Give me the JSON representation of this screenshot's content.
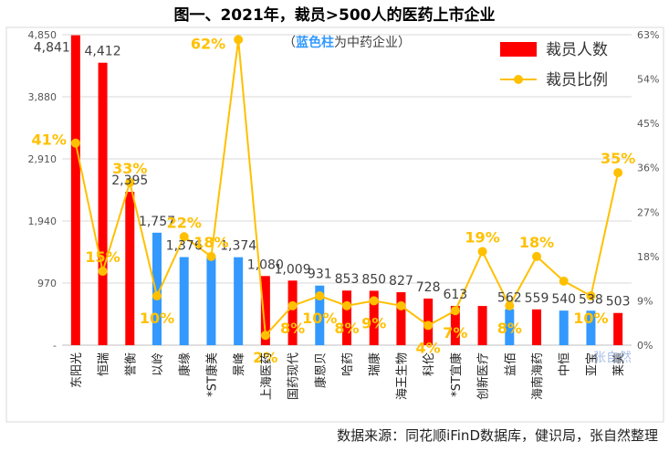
{
  "chart_data": {
    "type": "bar+line",
    "title": "图一、2021年，裁员>500人的医药上市企业",
    "annotation": "（蓝色柱为中药企业）",
    "annotation_highlight": "蓝色柱",
    "annotation_prefix": "（",
    "annotation_suffix": "为中药企业）",
    "source": "数据来源：同花顺iFinD数据库，健识局，张自然整理",
    "watermark": "张自然",
    "colors": {
      "red": "#ff0000",
      "blue": "#3399ff",
      "line": "#ffc000",
      "label_orange": "#ffc000"
    },
    "legend": {
      "bar": "裁员人数",
      "line": "裁员比例",
      "position": "top-right"
    },
    "left_axis": {
      "min": 0,
      "max": 4850,
      "ticks": [
        "-",
        "970",
        "1,940",
        "2,910",
        "3,880",
        "4,850"
      ]
    },
    "right_axis": {
      "min": 0,
      "max": 63,
      "ticks": [
        "0%",
        "9%",
        "18%",
        "27%",
        "36%",
        "45%",
        "54%",
        "63%"
      ]
    },
    "categories": [
      "东阳光",
      "恒瑞",
      "誉衡",
      "以岭",
      "康缘",
      "*ST康美",
      "景峰",
      "上海医药",
      "国药现代",
      "康恩贝",
      "哈药",
      "瑞康",
      "海王生物",
      "科伦",
      "*ST宜康",
      "创新医疗",
      "益佰",
      "海南海药",
      "中恒",
      "亚宝",
      "莱美"
    ],
    "bar_values": [
      4841,
      4412,
      2395,
      1757,
      1376,
      1376,
      1374,
      1080,
      1009,
      931,
      853,
      850,
      827,
      728,
      613,
      612,
      562,
      559,
      540,
      538,
      503
    ],
    "bar_labels": [
      "4,841",
      "4,412",
      "2,395",
      "1,757",
      "1,376",
      "",
      "1,374",
      "1,080",
      "1,009",
      "931",
      "853",
      "850",
      "827",
      "728",
      "613",
      "",
      "562",
      "559",
      "540",
      "538",
      "503"
    ],
    "bar_colors": [
      "red",
      "red",
      "red",
      "blue",
      "blue",
      "blue",
      "blue",
      "red",
      "red",
      "blue",
      "red",
      "red",
      "red",
      "red",
      "red",
      "red",
      "blue",
      "red",
      "blue",
      "blue",
      "red"
    ],
    "ratio_values": [
      41,
      15,
      33,
      10,
      22,
      18,
      62,
      2,
      8,
      10,
      8,
      9,
      8,
      4,
      7,
      19,
      8,
      18,
      13,
      10,
      35
    ],
    "ratio_labels": [
      "41%",
      "15%",
      "33%",
      "10%",
      "22%",
      "18%",
      "62%",
      "2%",
      "8%",
      "10%",
      "8%",
      "9%",
      "",
      "4%",
      "7%",
      "19%",
      "8%",
      "18%",
      "",
      "10%",
      "35%"
    ]
  }
}
